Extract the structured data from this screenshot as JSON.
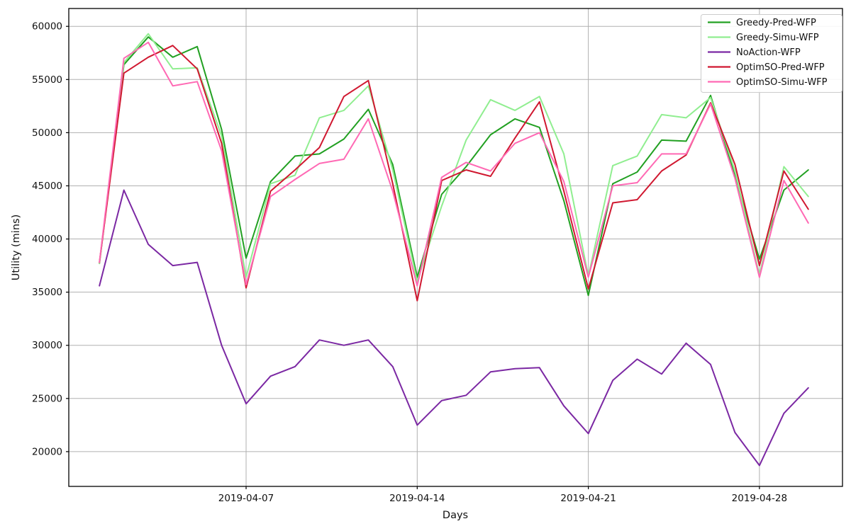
{
  "chart_data": {
    "type": "line",
    "title": "",
    "xlabel": "Days",
    "ylabel": "Utility (mins)",
    "grid": true,
    "legend_position": "upper right",
    "ylim": [
      16730,
      61680
    ],
    "y_ticks": [
      20000,
      25000,
      30000,
      35000,
      40000,
      45000,
      50000,
      55000,
      60000
    ],
    "x_tick_labels": [
      "2019-04-07",
      "2019-04-14",
      "2019-04-21",
      "2019-04-28"
    ],
    "x_tick_index": [
      6,
      13,
      20,
      27
    ],
    "x": [
      "2019-04-01",
      "2019-04-02",
      "2019-04-03",
      "2019-04-04",
      "2019-04-05",
      "2019-04-06",
      "2019-04-07",
      "2019-04-08",
      "2019-04-09",
      "2019-04-10",
      "2019-04-11",
      "2019-04-12",
      "2019-04-13",
      "2019-04-14",
      "2019-04-15",
      "2019-04-16",
      "2019-04-17",
      "2019-04-18",
      "2019-04-19",
      "2019-04-20",
      "2019-04-21",
      "2019-04-22",
      "2019-04-23",
      "2019-04-24",
      "2019-04-25",
      "2019-04-26",
      "2019-04-27",
      "2019-04-28",
      "2019-04-29",
      "2019-04-30"
    ],
    "series": [
      {
        "name": "Greedy-Pred-WFP",
        "color": "#22a022",
        "values": [
          37700,
          56400,
          59000,
          57100,
          58100,
          50300,
          38200,
          45400,
          47800,
          48000,
          49400,
          52200,
          47000,
          36400,
          44200,
          46800,
          49800,
          51300,
          50500,
          43600,
          34700,
          45200,
          46300,
          49300,
          49200,
          53500,
          45900,
          38100,
          44600,
          46500
        ]
      },
      {
        "name": "Greedy-Simu-WFP",
        "color": "#90ee90",
        "values": [
          37700,
          56600,
          59300,
          56000,
          56100,
          49700,
          36400,
          45200,
          46000,
          51400,
          52100,
          54400,
          46500,
          36000,
          43100,
          49300,
          53100,
          52100,
          53400,
          48000,
          36500,
          46900,
          47800,
          51700,
          51400,
          53300,
          46400,
          36600,
          46800,
          44000
        ]
      },
      {
        "name": "NoAction-WFP",
        "color": "#7b28a3",
        "values": [
          35600,
          44600,
          39500,
          37500,
          37800,
          30000,
          24500,
          27100,
          28000,
          30500,
          30000,
          30500,
          28000,
          22500,
          24800,
          25300,
          27500,
          27800,
          27900,
          24300,
          21700,
          26700,
          28700,
          27300,
          30200,
          28200,
          21800,
          18700,
          23600,
          26000
        ]
      },
      {
        "name": "OptimSO-Pred-WFP",
        "color": "#d01830",
        "values": [
          37800,
          55600,
          57100,
          58200,
          56000,
          49000,
          35400,
          44500,
          46500,
          48600,
          53400,
          54900,
          45200,
          34200,
          45500,
          46500,
          45900,
          49500,
          52900,
          44500,
          35300,
          43400,
          43700,
          46400,
          47900,
          52800,
          47000,
          37500,
          46400,
          42800
        ]
      },
      {
        "name": "OptimSO-Simu-WFP",
        "color": "#ff69b4",
        "values": [
          37800,
          57000,
          58500,
          54400,
          54800,
          48300,
          35700,
          44000,
          45600,
          47100,
          47500,
          51300,
          44500,
          35600,
          45800,
          47200,
          46400,
          49000,
          50000,
          45400,
          36400,
          45000,
          45300,
          48000,
          48000,
          52700,
          45700,
          36400,
          45500,
          41500
        ]
      }
    ]
  }
}
